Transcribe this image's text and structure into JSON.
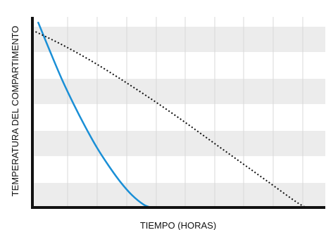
{
  "chart_data": {
    "type": "line",
    "title": "",
    "xlabel": "TIEMPO (HORAS)",
    "ylabel": "TEMPERATURA DEL COMPARTIMENTO",
    "x_ticks_labeled": false,
    "y_ticks_labeled": false,
    "grid": true,
    "grid_style": "vertical lines with alternating horizontal bands",
    "legend": "none",
    "xlim": [
      0,
      1
    ],
    "ylim": [
      0,
      1
    ],
    "series": [
      {
        "style": "solid",
        "color": "#1a8fd6",
        "x": [
          0.02,
          0.06,
          0.1,
          0.14,
          0.18,
          0.22,
          0.26,
          0.3,
          0.34,
          0.38,
          0.405
        ],
        "y": [
          0.97,
          0.82,
          0.675,
          0.545,
          0.425,
          0.315,
          0.22,
          0.135,
          0.065,
          0.015,
          0.0
        ]
      },
      {
        "style": "dotted",
        "color": "#111111",
        "x": [
          0.0,
          0.1,
          0.2,
          0.3,
          0.4,
          0.5,
          0.6,
          0.7,
          0.8,
          0.9,
          0.935
        ],
        "y": [
          0.93,
          0.855,
          0.77,
          0.675,
          0.575,
          0.47,
          0.36,
          0.25,
          0.14,
          0.03,
          0.0
        ]
      }
    ]
  }
}
